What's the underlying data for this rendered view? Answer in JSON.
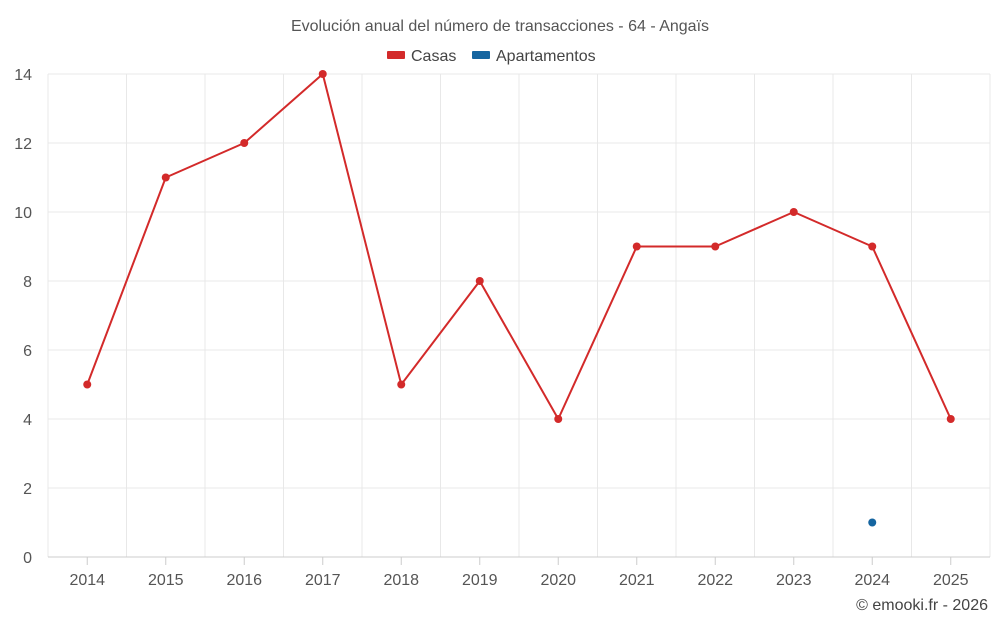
{
  "chart_data": {
    "type": "line",
    "title": "Evolución anual del número de transacciones - 64 - Angaïs",
    "categories": [
      "2014",
      "2015",
      "2016",
      "2017",
      "2018",
      "2019",
      "2020",
      "2021",
      "2022",
      "2023",
      "2024",
      "2025"
    ],
    "y_ticks": [
      0,
      2,
      4,
      6,
      8,
      10,
      12,
      14
    ],
    "ylim": [
      0,
      14
    ],
    "grid": true,
    "legend_position": "top-center",
    "series": [
      {
        "name": "Casas",
        "color": "#d32a2a",
        "values": [
          5,
          11,
          12,
          14,
          5,
          8,
          4,
          9,
          9,
          10,
          9,
          4
        ]
      },
      {
        "name": "Apartamentos",
        "color": "#1565a0",
        "values": [
          null,
          null,
          null,
          null,
          null,
          null,
          null,
          null,
          null,
          null,
          1,
          null
        ]
      }
    ],
    "credit": "© emooki.fr - 2026"
  }
}
